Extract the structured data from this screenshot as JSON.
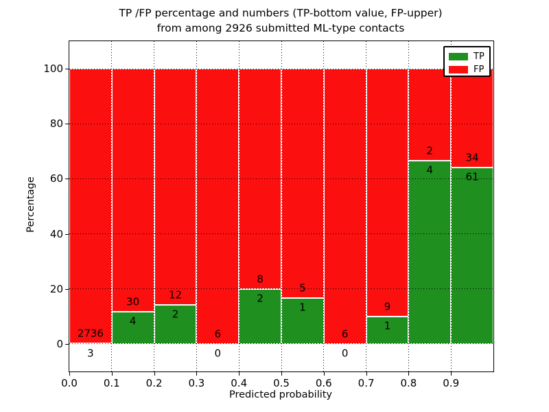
{
  "title": {
    "line1": "TP /FP percentage and numbers (TP-bottom value, FP-upper)",
    "line2": "from among 2926 submitted ML-type contacts"
  },
  "chart_data": {
    "type": "bar",
    "stacked": true,
    "normalized": "each bin scaled to 100%",
    "title": "TP /FP percentage and numbers (TP-bottom value, FP-upper)\nfrom among 2926 submitted ML-type contacts",
    "xlabel": "Predicted probability",
    "ylabel": "Percentage",
    "xlim": [
      0.0,
      1.0
    ],
    "ylim": [
      -10,
      110
    ],
    "grid": true,
    "xticks": [
      "0.0",
      "0.1",
      "0.2",
      "0.3",
      "0.4",
      "0.5",
      "0.6",
      "0.7",
      "0.8",
      "0.9"
    ],
    "yticks": [
      0,
      20,
      40,
      60,
      80,
      100
    ],
    "series": [
      {
        "name": "TP",
        "color": "#1f8f1f"
      },
      {
        "name": "FP",
        "color": "#fb0f0f"
      }
    ],
    "legend": {
      "position": "upper right"
    },
    "bins": [
      {
        "range": [
          0.0,
          0.1
        ],
        "tp": 3,
        "fp": 2736
      },
      {
        "range": [
          0.1,
          0.2
        ],
        "tp": 4,
        "fp": 30
      },
      {
        "range": [
          0.2,
          0.3
        ],
        "tp": 2,
        "fp": 12
      },
      {
        "range": [
          0.3,
          0.4
        ],
        "tp": 0,
        "fp": 6
      },
      {
        "range": [
          0.4,
          0.5
        ],
        "tp": 2,
        "fp": 8
      },
      {
        "range": [
          0.5,
          0.6
        ],
        "tp": 1,
        "fp": 5
      },
      {
        "range": [
          0.6,
          0.7
        ],
        "tp": 0,
        "fp": 6
      },
      {
        "range": [
          0.7,
          0.8
        ],
        "tp": 1,
        "fp": 9
      },
      {
        "range": [
          0.8,
          0.9
        ],
        "tp": 4,
        "fp": 2
      },
      {
        "range": [
          0.9,
          1.0
        ],
        "tp": 61,
        "fp": 34
      }
    ]
  }
}
